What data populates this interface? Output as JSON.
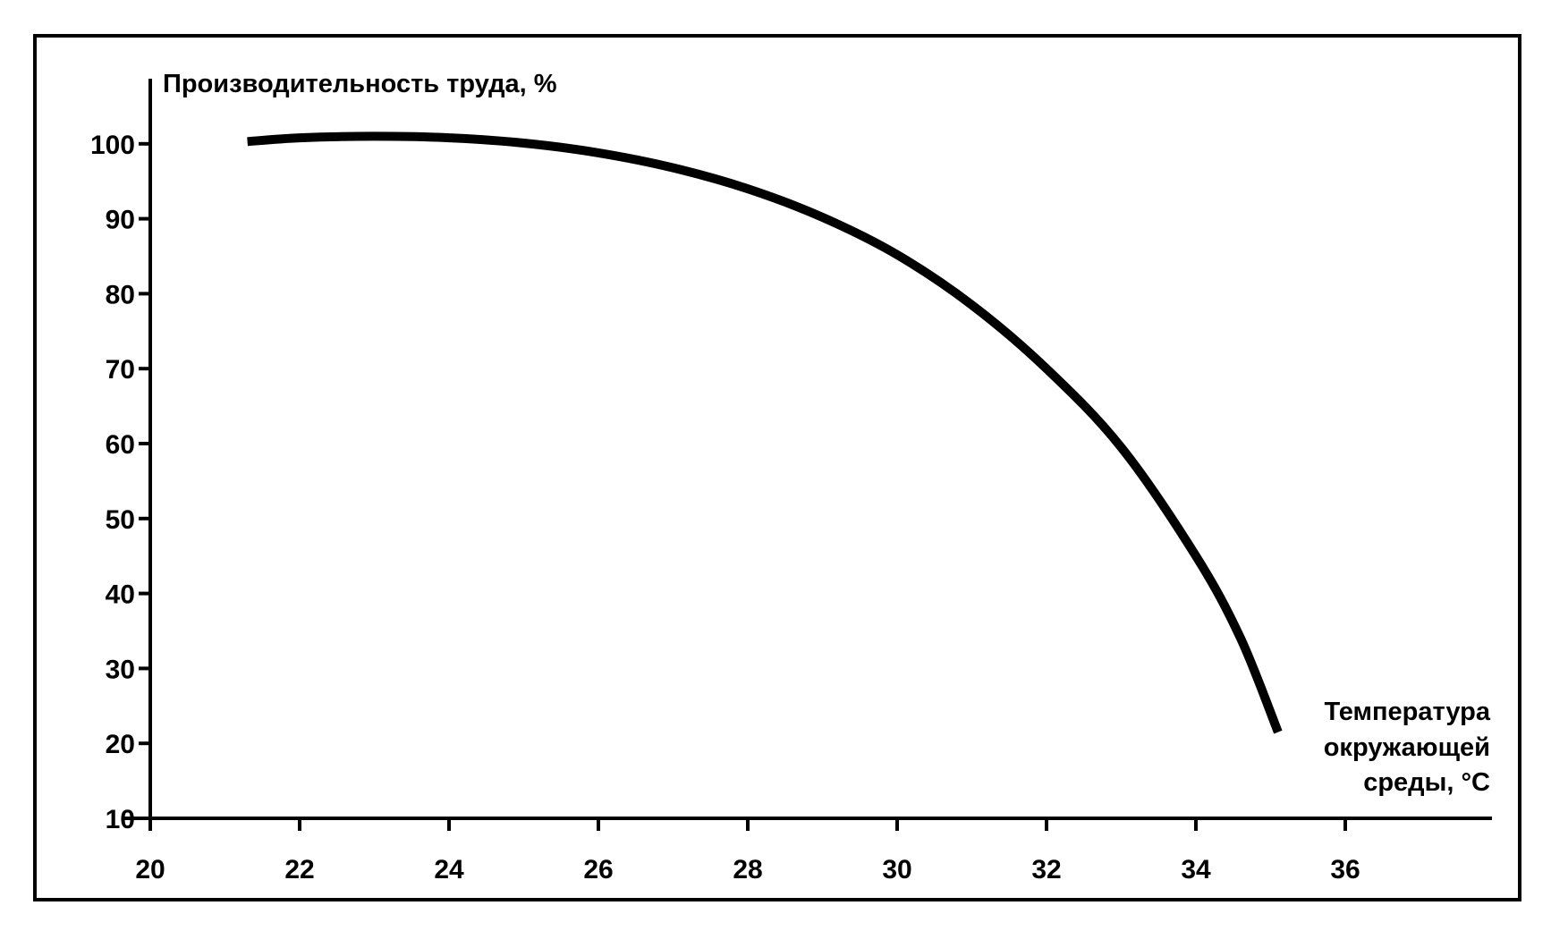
{
  "chart_data": {
    "type": "line",
    "title": "",
    "ylabel": "Производительность труда, %",
    "xlabel_lines": [
      "Температура",
      "окружающей",
      "среды, °C"
    ],
    "x_ticks": [
      20,
      22,
      24,
      26,
      28,
      30,
      32,
      34,
      36
    ],
    "y_ticks": [
      10,
      20,
      30,
      40,
      50,
      60,
      70,
      80,
      90,
      100
    ],
    "xlim": [
      20,
      38
    ],
    "ylim": [
      10,
      110
    ],
    "grid": false,
    "series": [
      {
        "color": "#000000",
        "x": [
          21.3,
          22,
          23,
          24,
          25,
          26,
          27,
          28,
          29,
          30,
          31,
          32,
          33,
          34,
          34.6,
          35.1
        ],
        "y": [
          100.3,
          100.8,
          101,
          100.8,
          100.1,
          98.8,
          96.8,
          94,
          90.2,
          85.2,
          78.5,
          70,
          59.5,
          45,
          34,
          21.5
        ]
      }
    ]
  }
}
